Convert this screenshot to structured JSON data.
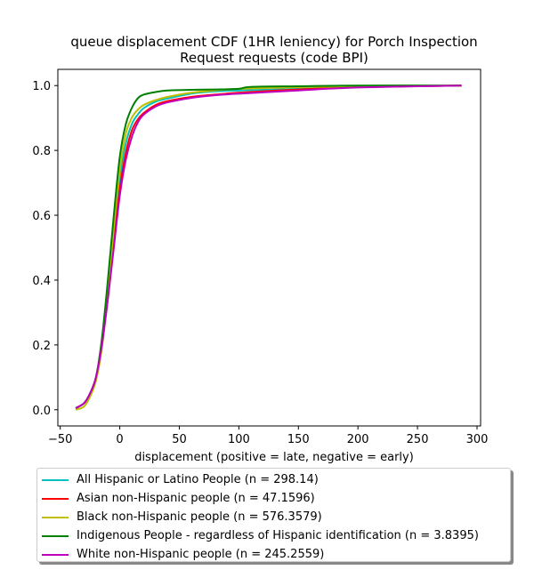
{
  "chart_data": {
    "type": "line",
    "title": [
      "queue displacement CDF (1HR leniency) for Porch Inspection",
      "Request  requests (code BPI)"
    ],
    "xlabel": "displacement (positive = late, negative = early)",
    "ylabel": "",
    "xlim": [
      -52,
      303
    ],
    "ylim": [
      -0.05,
      1.05
    ],
    "xticks": [
      -50,
      0,
      50,
      100,
      150,
      200,
      250,
      300
    ],
    "xtick_labels": [
      "−50",
      "0",
      "50",
      "100",
      "150",
      "200",
      "250",
      "300"
    ],
    "yticks": [
      0.0,
      0.2,
      0.4,
      0.6,
      0.8,
      1.0
    ],
    "ytick_labels": [
      "0.0",
      "0.2",
      "0.4",
      "0.6",
      "0.8",
      "1.0"
    ],
    "grid": false,
    "legend_position": "below",
    "series": [
      {
        "name": "All Hispanic or Latino People (n = 298.14)",
        "color": "#00bfbf",
        "x": [
          -37,
          -30,
          -25,
          -20,
          -15,
          -10,
          -5,
          0,
          5,
          10,
          15,
          20,
          30,
          40,
          60,
          80,
          100,
          150,
          200,
          287
        ],
        "y": [
          0.005,
          0.02,
          0.05,
          0.1,
          0.2,
          0.36,
          0.54,
          0.71,
          0.82,
          0.88,
          0.91,
          0.93,
          0.95,
          0.96,
          0.975,
          0.982,
          0.985,
          0.99,
          0.995,
          1.0
        ]
      },
      {
        "name": "Asian non-Hispanic people (n = 47.1596)",
        "color": "#ff0000",
        "x": [
          -37,
          -30,
          -25,
          -20,
          -15,
          -10,
          -5,
          0,
          5,
          10,
          15,
          20,
          30,
          40,
          60,
          80,
          100,
          150,
          200,
          287
        ],
        "y": [
          0.005,
          0.02,
          0.05,
          0.1,
          0.2,
          0.35,
          0.52,
          0.68,
          0.79,
          0.86,
          0.895,
          0.915,
          0.94,
          0.952,
          0.965,
          0.972,
          0.978,
          0.988,
          0.995,
          1.0
        ]
      },
      {
        "name": "Black non-Hispanic people (n = 576.3579)",
        "color": "#bfbf00",
        "x": [
          -37,
          -30,
          -25,
          -20,
          -15,
          -10,
          -5,
          0,
          5,
          10,
          15,
          20,
          30,
          40,
          60,
          80,
          100,
          150,
          200,
          287
        ],
        "y": [
          0.0,
          0.01,
          0.04,
          0.09,
          0.19,
          0.36,
          0.56,
          0.74,
          0.85,
          0.9,
          0.925,
          0.94,
          0.955,
          0.965,
          0.978,
          0.985,
          0.99,
          0.995,
          0.998,
          1.0
        ]
      },
      {
        "name": "Indigenous People - regardless of Hispanic identification (n = 3.8395)",
        "color": "#008000",
        "x": [
          -37,
          -30,
          -25,
          -20,
          -15,
          -10,
          -5,
          0,
          5,
          10,
          15,
          20,
          30,
          40,
          60,
          80,
          100,
          110,
          150,
          200,
          287
        ],
        "y": [
          0.005,
          0.02,
          0.05,
          0.1,
          0.22,
          0.4,
          0.6,
          0.78,
          0.88,
          0.93,
          0.96,
          0.972,
          0.98,
          0.985,
          0.987,
          0.988,
          0.99,
          0.996,
          0.998,
          1.0,
          1.0
        ]
      },
      {
        "name": "White non-Hispanic people (n = 245.2559)",
        "color": "#bf00bf",
        "x": [
          -37,
          -30,
          -25,
          -20,
          -15,
          -10,
          -5,
          0,
          5,
          10,
          15,
          20,
          30,
          40,
          60,
          80,
          100,
          150,
          200,
          287
        ],
        "y": [
          0.005,
          0.02,
          0.05,
          0.1,
          0.2,
          0.34,
          0.5,
          0.66,
          0.77,
          0.84,
          0.885,
          0.91,
          0.935,
          0.948,
          0.962,
          0.97,
          0.975,
          0.985,
          0.994,
          1.0
        ]
      }
    ]
  }
}
